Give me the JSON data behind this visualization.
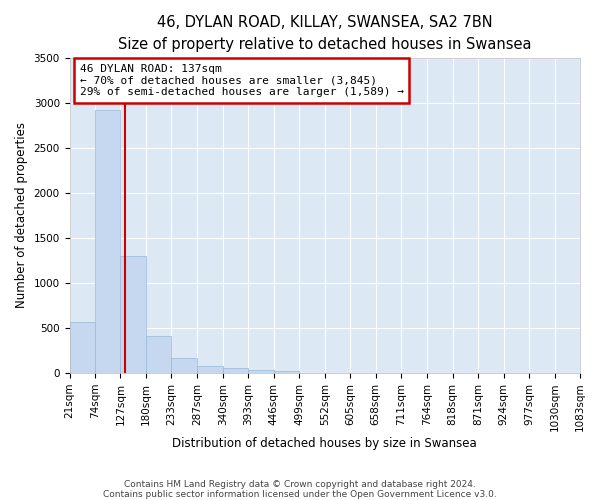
{
  "title1": "46, DYLAN ROAD, KILLAY, SWANSEA, SA2 7BN",
  "title2": "Size of property relative to detached houses in Swansea",
  "xlabel": "Distribution of detached houses by size in Swansea",
  "ylabel": "Number of detached properties",
  "bin_labels": [
    "21sqm",
    "74sqm",
    "127sqm",
    "180sqm",
    "233sqm",
    "287sqm",
    "340sqm",
    "393sqm",
    "446sqm",
    "499sqm",
    "552sqm",
    "605sqm",
    "658sqm",
    "711sqm",
    "764sqm",
    "818sqm",
    "871sqm",
    "924sqm",
    "977sqm",
    "1030sqm",
    "1083sqm"
  ],
  "bin_edges": [
    21,
    74,
    127,
    180,
    233,
    287,
    340,
    393,
    446,
    499,
    552,
    605,
    658,
    711,
    764,
    818,
    871,
    924,
    977,
    1030,
    1083
  ],
  "bar_heights": [
    570,
    2920,
    1300,
    410,
    165,
    80,
    55,
    30,
    20,
    0,
    0,
    0,
    0,
    0,
    0,
    0,
    0,
    0,
    0,
    0
  ],
  "bar_color": "#c5d8f0",
  "bar_edge_color": "#9ab8d8",
  "vline_x": 137,
  "vline_color": "#cc0000",
  "annotation_text": "46 DYLAN ROAD: 137sqm\n← 70% of detached houses are smaller (3,845)\n29% of semi-detached houses are larger (1,589) →",
  "annotation_box_color": "#cc0000",
  "ylim": [
    0,
    3500
  ],
  "yticks": [
    0,
    500,
    1000,
    1500,
    2000,
    2500,
    3000,
    3500
  ],
  "background_color": "#dde8f5",
  "grid_color": "#ffffff",
  "footer1": "Contains HM Land Registry data © Crown copyright and database right 2024.",
  "footer2": "Contains public sector information licensed under the Open Government Licence v3.0.",
  "title_fontsize": 10.5,
  "subtitle_fontsize": 9.5,
  "axis_label_fontsize": 8.5,
  "tick_fontsize": 7.5,
  "footer_fontsize": 6.5
}
